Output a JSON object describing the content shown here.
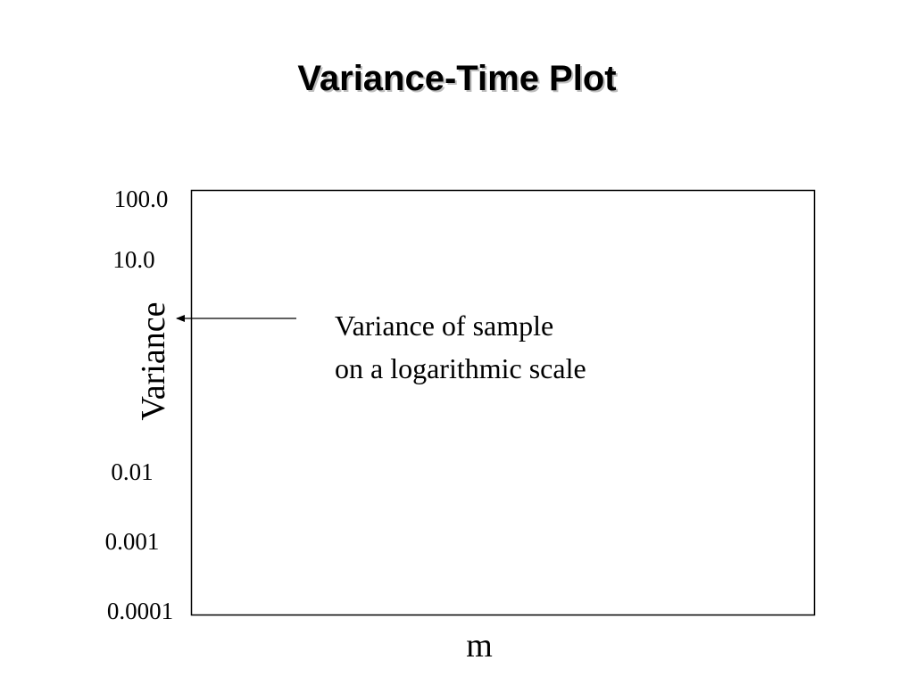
{
  "slide": {
    "title": "Variance-Time Plot"
  },
  "chart_data": {
    "type": "line",
    "title": "Variance-Time Plot",
    "xlabel": "m",
    "ylabel": "Variance",
    "yscale": "log",
    "y_tick_labels": [
      "100.0",
      "10.0",
      "0.01",
      "0.001",
      "0.0001"
    ],
    "y_tick_values": [
      100,
      10,
      0.01,
      0.001,
      0.0001
    ],
    "ylim": [
      0.0001,
      100
    ],
    "series": [],
    "grid": false,
    "legend": "none",
    "annotation": {
      "lines": [
        "Variance of sample",
        "on a logarithmic scale"
      ],
      "arrow_target": "y-axis"
    },
    "colors": {
      "axis": "#000000",
      "text": "#000000"
    }
  }
}
